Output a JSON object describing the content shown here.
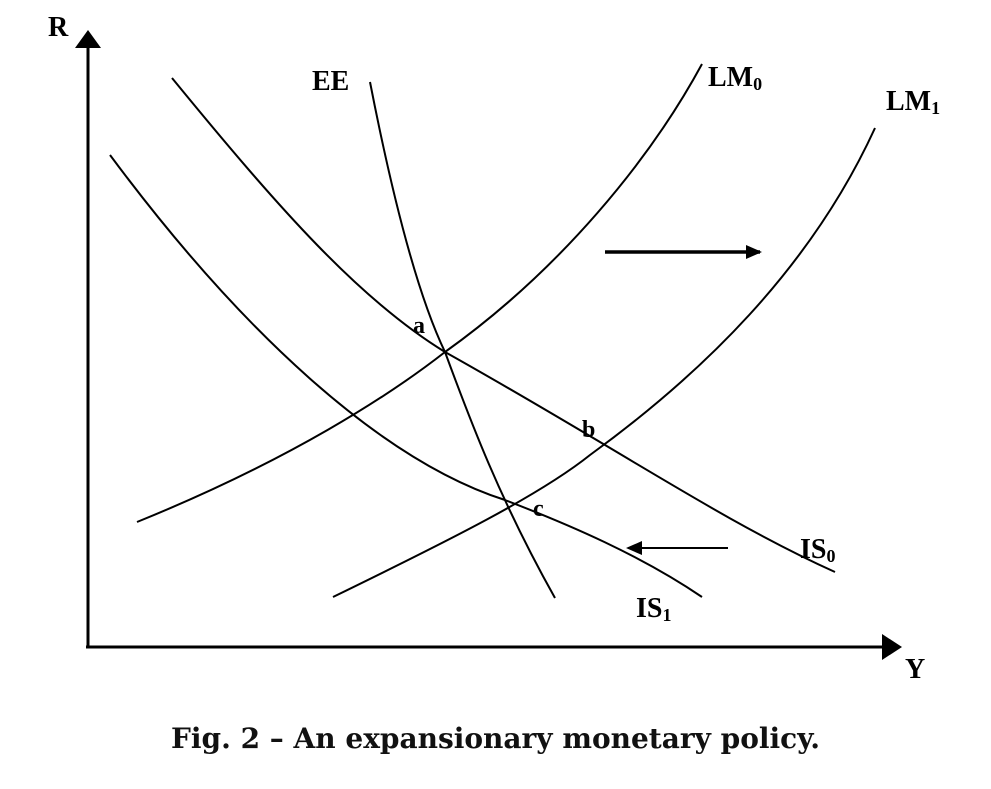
{
  "axes": {
    "y_label": "R",
    "x_label": "Y"
  },
  "curves": {
    "ee": "EE",
    "lm0": {
      "base": "LM",
      "sub": "0"
    },
    "lm1": {
      "base": "LM",
      "sub": "1"
    },
    "is0": {
      "base": "IS",
      "sub": "0"
    },
    "is1": {
      "base": "IS",
      "sub": "1"
    }
  },
  "points": {
    "a": "a",
    "b": "b",
    "c": "c"
  },
  "arrows": {
    "lm_shift": "right",
    "is_shift": "left"
  },
  "caption": "Fig. 2 – An expansionary monetary policy."
}
